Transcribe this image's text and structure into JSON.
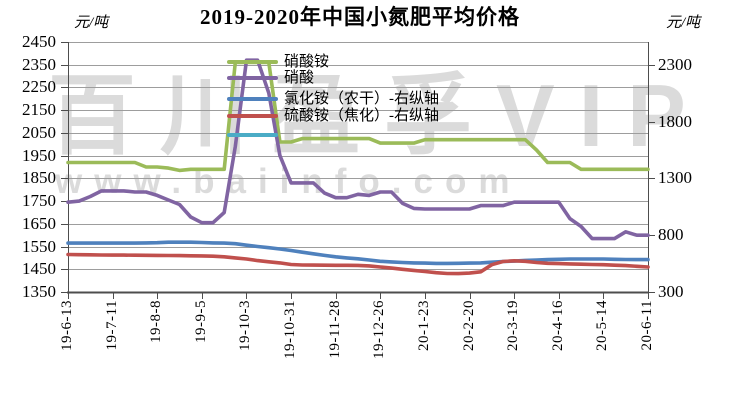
{
  "title": "2019-2020年中国小氮肥平均价格",
  "left_axis_unit": "元/吨",
  "right_axis_unit": "元/吨",
  "watermark": {
    "line1": "百川盈孚VIP",
    "line2": "www.baiinfo.com"
  },
  "legend": [
    {
      "label": "硝酸铵",
      "color": "#9BBB59"
    },
    {
      "label": "硝酸",
      "color": "#8064A2"
    },
    {
      "label": "氯化铵（农干）-右纵轴",
      "color": "#4F81BD"
    },
    {
      "label": "硫酸铵（焦化）-右纵轴",
      "color": "#C0504D"
    },
    {
      "label": "",
      "color": "#4BACC6"
    }
  ],
  "chart_data": {
    "type": "line",
    "title": "2019-2020年中国小氮肥平均价格",
    "grid": true,
    "grid_color": "#9d9d9d",
    "spine_color": "#4d4d4d",
    "legend_position": "inside-top-center",
    "left_axis": {
      "unit": "元/吨",
      "min": 1350,
      "max": 2450,
      "tick_step": 100,
      "tick_labels": [
        2450,
        2350,
        2250,
        2150,
        2050,
        1950,
        1850,
        1750,
        1650,
        1550,
        1450,
        1350
      ]
    },
    "right_axis": {
      "unit": "元/吨",
      "min": 300,
      "max": 2500,
      "tick_labels": [
        2300,
        1800,
        1300,
        800,
        300
      ]
    },
    "x_label_every": 4,
    "x_tick_labels": [
      "19-6-13",
      "19-7-11",
      "19-8-8",
      "19-9-5",
      "19-10-3",
      "19-10-31",
      "19-11-28",
      "19-12-26",
      "20-1-23",
      "20-2-20",
      "20-3-19",
      "20-4-16",
      "20-5-14",
      "20-6-11"
    ],
    "x": [
      "19-6-13",
      "19-6-20",
      "19-6-27",
      "19-7-4",
      "19-7-11",
      "19-7-18",
      "19-7-25",
      "19-8-1",
      "19-8-8",
      "19-8-15",
      "19-8-22",
      "19-8-29",
      "19-9-5",
      "19-9-12",
      "19-9-19",
      "19-9-26",
      "19-10-3",
      "19-10-10",
      "19-10-17",
      "19-10-24",
      "19-10-31",
      "19-11-7",
      "19-11-14",
      "19-11-21",
      "19-11-28",
      "19-12-5",
      "19-12-12",
      "19-12-19",
      "19-12-26",
      "20-1-2",
      "20-1-9",
      "20-1-16",
      "20-1-23",
      "20-1-30",
      "20-2-6",
      "20-2-13",
      "20-2-20",
      "20-2-27",
      "20-3-5",
      "20-3-12",
      "20-3-19",
      "20-3-26",
      "20-4-2",
      "20-4-9",
      "20-4-16",
      "20-4-23",
      "20-4-30",
      "20-5-7",
      "20-5-14",
      "20-5-21",
      "20-5-28",
      "20-6-4",
      "20-6-11"
    ],
    "series": [
      {
        "name": "硝酸铵",
        "axis": "left",
        "color": "#9BBB59",
        "values": [
          1920,
          1920,
          1920,
          1920,
          1920,
          1920,
          1920,
          1900,
          1900,
          1895,
          1885,
          1890,
          1890,
          1890,
          1890,
          2360,
          2360,
          2360,
          2360,
          2010,
          2010,
          2025,
          2025,
          2025,
          2025,
          2025,
          2025,
          2025,
          2005,
          2005,
          2005,
          2005,
          2020,
          2020,
          2020,
          2020,
          2020,
          2020,
          2020,
          2020,
          2020,
          2020,
          1975,
          1920,
          1920,
          1920,
          1890,
          1890,
          1890,
          1890,
          1890,
          1890,
          1890
        ]
      },
      {
        "name": "硝酸",
        "axis": "left",
        "color": "#8064A2",
        "values": [
          1745,
          1750,
          1770,
          1795,
          1795,
          1795,
          1790,
          1790,
          1775,
          1755,
          1735,
          1680,
          1655,
          1655,
          1700,
          1990,
          2370,
          2370,
          2225,
          1950,
          1830,
          1830,
          1830,
          1785,
          1765,
          1765,
          1780,
          1775,
          1790,
          1790,
          1740,
          1718,
          1715,
          1715,
          1715,
          1715,
          1715,
          1730,
          1730,
          1730,
          1745,
          1745,
          1745,
          1745,
          1745,
          1673,
          1638,
          1585,
          1585,
          1585,
          1615,
          1600,
          1600
        ]
      },
      {
        "name": "氯化铵（农干）-右纵轴",
        "axis": "right",
        "color": "#4F81BD",
        "values": [
          730,
          730,
          730,
          730,
          730,
          730,
          730,
          732,
          734,
          738,
          738,
          738,
          736,
          732,
          730,
          725,
          712,
          700,
          690,
          678,
          665,
          650,
          636,
          622,
          610,
          600,
          592,
          582,
          570,
          565,
          560,
          556,
          554,
          552,
          552,
          553,
          554,
          556,
          562,
          568,
          572,
          578,
          582,
          585,
          588,
          590,
          590,
          590,
          590,
          588,
          586,
          585,
          585
        ]
      },
      {
        "name": "硫酸铵（焦化）-右纵轴",
        "axis": "right",
        "color": "#C0504D",
        "values": [
          630,
          628,
          627,
          626,
          625,
          625,
          624,
          623,
          622,
          621,
          620,
          619,
          618,
          615,
          610,
          600,
          590,
          576,
          566,
          556,
          542,
          538,
          537,
          536,
          535,
          535,
          534,
          530,
          520,
          510,
          500,
          490,
          480,
          470,
          463,
          462,
          466,
          478,
          540,
          568,
          575,
          570,
          560,
          553,
          550,
          547,
          545,
          542,
          540,
          536,
          532,
          526,
          520
        ]
      },
      {
        "name": "",
        "axis": "right",
        "color": "#4BACC6",
        "values": []
      }
    ]
  }
}
